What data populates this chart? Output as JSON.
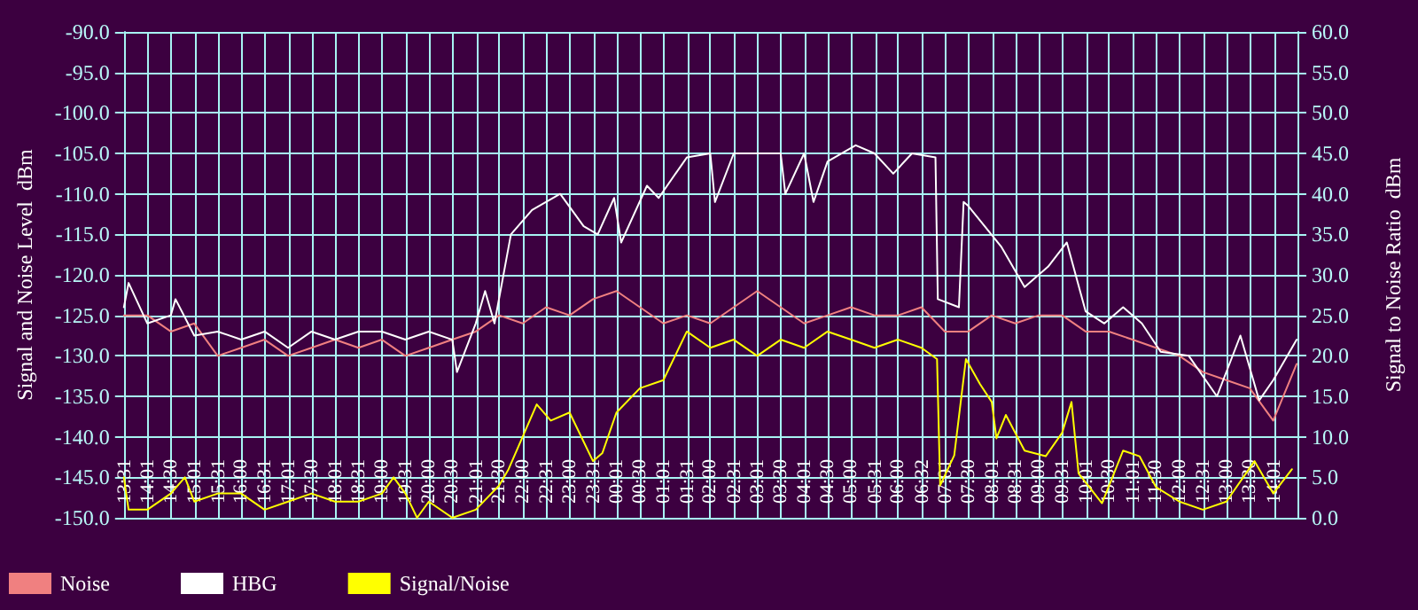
{
  "chart_data": {
    "type": "line",
    "ylabel": "Signal and Noise Level  dBm",
    "y2label": "Signal to Noise Ratio  dBm",
    "xlim": [
      "--01-01T13:30",
      "--01-02T14:31"
    ],
    "xticks": [
      {
        "value": "--01-01T13:31",
        "label": "13:31"
      },
      {
        "value": "--01-01T14:01",
        "label": "14:01"
      },
      {
        "value": "--01-01T14:30",
        "label": "14:30"
      },
      {
        "value": "--01-01T15:01",
        "label": "15:01"
      },
      {
        "value": "--01-01T15:31",
        "label": "15:31"
      },
      {
        "value": "--01-01T16:00",
        "label": "16:00"
      },
      {
        "value": "--01-01T16:31",
        "label": "16:31"
      },
      {
        "value": "--01-01T17:01",
        "label": "17:01"
      },
      {
        "value": "--01-01T17:30",
        "label": "17:30"
      },
      {
        "value": "--01-01T18:01",
        "label": "18:01"
      },
      {
        "value": "--01-01T18:31",
        "label": "18:31"
      },
      {
        "value": "--01-01T19:00",
        "label": "19:00"
      },
      {
        "value": "--01-01T19:31",
        "label": "19:31"
      },
      {
        "value": "--01-01T20:00",
        "label": "20:00"
      },
      {
        "value": "--01-01T20:30",
        "label": "20:30"
      },
      {
        "value": "--01-01T21:01",
        "label": "21:01"
      },
      {
        "value": "--01-01T21:30",
        "label": "21:30"
      },
      {
        "value": "--01-01T22:00",
        "label": "22:00"
      },
      {
        "value": "--01-01T22:31",
        "label": "22:31"
      },
      {
        "value": "--01-01T23:00",
        "label": "23:00"
      },
      {
        "value": "--01-01T23:31",
        "label": "23:31"
      },
      {
        "value": "--01-02T00:01",
        "label": "00:01"
      },
      {
        "value": "--01-02T00:30",
        "label": "00:30"
      },
      {
        "value": "--01-02T01:01",
        "label": "01:01"
      },
      {
        "value": "--01-02T01:31",
        "label": "01:31"
      },
      {
        "value": "--01-02T02:00",
        "label": "02:00"
      },
      {
        "value": "--01-02T02:31",
        "label": "02:31"
      },
      {
        "value": "--01-02T03:01",
        "label": "03:01"
      },
      {
        "value": "--01-02T03:30",
        "label": "03:30"
      },
      {
        "value": "--01-02T04:01",
        "label": "04:01"
      },
      {
        "value": "--01-02T04:30",
        "label": "04:30"
      },
      {
        "value": "--01-02T05:00",
        "label": "05:00"
      },
      {
        "value": "--01-02T05:31",
        "label": "05:31"
      },
      {
        "value": "--01-02T06:00",
        "label": "06:00"
      },
      {
        "value": "--01-02T06:32",
        "label": "06:32"
      },
      {
        "value": "--01-02T07:01",
        "label": "07:01"
      },
      {
        "value": "--01-02T07:30",
        "label": "07:30"
      },
      {
        "value": "--01-02T08:01",
        "label": "08:01"
      },
      {
        "value": "--01-02T08:31",
        "label": "08:31"
      },
      {
        "value": "--01-02T09:00",
        "label": "09:00"
      },
      {
        "value": "--01-02T09:31",
        "label": "09:31"
      },
      {
        "value": "--01-02T10:01",
        "label": "10:01"
      },
      {
        "value": "--01-02T10:30",
        "label": "10:30"
      },
      {
        "value": "--01-02T11:01",
        "label": "11:01"
      },
      {
        "value": "--01-02T11:30",
        "label": "11:30"
      },
      {
        "value": "--01-02T12:00",
        "label": "12:00"
      },
      {
        "value": "--01-02T12:31",
        "label": "12:31"
      },
      {
        "value": "--01-02T13:00",
        "label": "13:00"
      },
      {
        "value": "--01-02T13:30",
        "label": "13:30"
      },
      {
        "value": "--01-02T14:01",
        "label": "14:01"
      }
    ],
    "ylim": [
      -150,
      -90
    ],
    "yticks": [
      {
        "value": -150,
        "label": "-150.0"
      },
      {
        "value": -145,
        "label": "-145.0"
      },
      {
        "value": -140,
        "label": "-140.0"
      },
      {
        "value": -135,
        "label": "-135.0"
      },
      {
        "value": -130,
        "label": "-130.0"
      },
      {
        "value": -125,
        "label": "-125.0"
      },
      {
        "value": -120,
        "label": "-120.0"
      },
      {
        "value": -115,
        "label": "-115.0"
      },
      {
        "value": -110,
        "label": "-110.0"
      },
      {
        "value": -105,
        "label": "-105.0"
      },
      {
        "value": -100,
        "label": "-100.0"
      },
      {
        "value": -95,
        "label": "-95.0"
      },
      {
        "value": -90,
        "label": "-90.0"
      }
    ],
    "y2lim": [
      0,
      60
    ],
    "y2ticks": [
      {
        "value": 0,
        "label": "0.0"
      },
      {
        "value": 5,
        "label": "5.0"
      },
      {
        "value": 10,
        "label": "10.0"
      },
      {
        "value": 15,
        "label": "15.0"
      },
      {
        "value": 20,
        "label": "20.0"
      },
      {
        "value": 25,
        "label": "25.0"
      },
      {
        "value": 30,
        "label": "30.0"
      },
      {
        "value": 35,
        "label": "35.0"
      },
      {
        "value": 40,
        "label": "40.0"
      },
      {
        "value": 45,
        "label": "45.0"
      },
      {
        "value": 50,
        "label": "50.0"
      },
      {
        "value": 55,
        "label": "55.0"
      },
      {
        "value": 60,
        "label": "60.0"
      }
    ],
    "grid": true,
    "legend": "bottom",
    "marker": "none",
    "line_style": "solid",
    "series": [
      {
        "name": "Noise",
        "color": "#f08080",
        "x": [
          "--01-01T13:30",
          "--01-01T14:00",
          "--01-01T14:30",
          "--01-01T15:00",
          "--01-01T15:30",
          "--01-01T16:00",
          "--01-01T16:30",
          "--01-01T17:00",
          "--01-01T17:30",
          "--01-01T18:00",
          "--01-01T18:30",
          "--01-01T19:00",
          "--01-01T19:30",
          "--01-01T20:00",
          "--01-01T20:30",
          "--01-01T21:00",
          "--01-01T21:30",
          "--01-01T22:00",
          "--01-01T22:30",
          "--01-01T23:00",
          "--01-01T23:30",
          "--01-02T00:00",
          "--01-02T00:30",
          "--01-02T01:00",
          "--01-02T01:30",
          "--01-02T02:00",
          "--01-02T02:30",
          "--01-02T03:00",
          "--01-02T03:30",
          "--01-02T04:00",
          "--01-02T04:30",
          "--01-02T05:00",
          "--01-02T05:30",
          "--01-02T06:00",
          "--01-02T06:30",
          "--01-02T07:00",
          "--01-02T07:30",
          "--01-02T08:00",
          "--01-02T08:30",
          "--01-02T09:00",
          "--01-02T09:30",
          "--01-02T10:00",
          "--01-02T10:30",
          "--01-02T11:00",
          "--01-02T11:30",
          "--01-02T12:00",
          "--01-02T12:30",
          "--01-02T13:00",
          "--01-02T13:30",
          "--01-02T14:00",
          "--01-02T14:30"
        ],
        "values": [
          -125,
          -125,
          -127,
          -126,
          -130,
          -129,
          -128,
          -130,
          -129,
          -128,
          -129,
          -128,
          -130,
          -129,
          -128,
          -127,
          -125,
          -126,
          -124,
          -125,
          -123,
          -122,
          -124,
          -126,
          -125,
          -126,
          -124,
          -122,
          -124,
          -126,
          -125,
          -124,
          -125,
          -125,
          -124,
          -127,
          -127,
          -125,
          -126,
          -125,
          -125,
          -127,
          -127,
          -128,
          -129,
          -130,
          -132,
          -133,
          -134,
          -138,
          -131
        ]
      },
      {
        "name": "HBG",
        "color": "#ffffff",
        "x": [
          "--01-01T13:30",
          "--01-01T13:36",
          "--01-01T14:00",
          "--01-01T14:30",
          "--01-01T14:36",
          "--01-01T15:00",
          "--01-01T15:30",
          "--01-01T16:00",
          "--01-01T16:30",
          "--01-01T17:00",
          "--01-01T17:30",
          "--01-01T18:00",
          "--01-01T18:30",
          "--01-01T19:00",
          "--01-01T19:30",
          "--01-01T20:00",
          "--01-01T20:30",
          "--01-01T20:36",
          "--01-01T21:00",
          "--01-01T21:12",
          "--01-01T21:24",
          "--01-01T21:45",
          "--01-01T22:12",
          "--01-01T22:48",
          "--01-01T23:18",
          "--01-01T23:36",
          "--01-01T23:57",
          "--01-02T00:06",
          "--01-02T00:39",
          "--01-02T00:54",
          "--01-02T01:30",
          "--01-02T02:00",
          "--01-02T02:06",
          "--01-02T02:30",
          "--01-02T03:00",
          "--01-02T03:30",
          "--01-02T03:36",
          "--01-02T04:00",
          "--01-02T04:12",
          "--01-02T04:30",
          "--01-02T05:06",
          "--01-02T05:30",
          "--01-02T05:54",
          "--01-02T06:18",
          "--01-02T06:48",
          "--01-02T06:51",
          "--01-02T07:18",
          "--01-02T07:24",
          "--01-02T07:30",
          "--01-02T08:12",
          "--01-02T08:42",
          "--01-02T09:12",
          "--01-02T09:36",
          "--01-02T10:00",
          "--01-02T10:24",
          "--01-02T10:48",
          "--01-02T11:12",
          "--01-02T11:36",
          "--01-02T12:12",
          "--01-02T12:48",
          "--01-02T13:18",
          "--01-02T13:42",
          "--01-02T14:00",
          "--01-02T14:30"
        ],
        "values": [
          -124,
          -121,
          -126,
          -125,
          -123,
          -127.5,
          -127,
          -128,
          -127,
          -129,
          -127,
          -128,
          -127,
          -127,
          -128,
          -127,
          -128,
          -132,
          -126,
          -122,
          -126,
          -115,
          -112,
          -110,
          -114,
          -115,
          -110.5,
          -116,
          -109,
          -110.5,
          -105.5,
          -105,
          -111,
          -105,
          -105,
          -105,
          -110,
          -105,
          -111,
          -106,
          -104,
          -105,
          -107.5,
          -105,
          -105.5,
          -123,
          -124,
          -111,
          -111.5,
          -116.5,
          -121.5,
          -119,
          -116,
          -124.5,
          -126,
          -124,
          -126,
          -129.5,
          -130,
          -135,
          -127.5,
          -135.5,
          -133,
          -128
        ]
      },
      {
        "name": "Signal/Noise",
        "color": "#ffff00",
        "axis": "y2",
        "x": [
          "--01-01T13:30",
          "--01-01T13:36",
          "--01-01T14:00",
          "--01-01T14:30",
          "--01-01T14:48",
          "--01-01T15:00",
          "--01-01T15:30",
          "--01-01T16:00",
          "--01-01T16:30",
          "--01-01T17:00",
          "--01-01T17:30",
          "--01-01T18:00",
          "--01-01T18:30",
          "--01-01T19:00",
          "--01-01T19:15",
          "--01-01T19:30",
          "--01-01T19:45",
          "--01-01T20:00",
          "--01-01T20:30",
          "--01-01T21:00",
          "--01-01T21:30",
          "--01-01T21:42",
          "--01-01T22:00",
          "--01-01T22:18",
          "--01-01T22:36",
          "--01-01T23:00",
          "--01-01T23:30",
          "--01-01T23:42",
          "--01-02T00:00",
          "--01-02T00:30",
          "--01-02T01:00",
          "--01-02T01:30",
          "--01-02T02:00",
          "--01-02T02:30",
          "--01-02T03:00",
          "--01-02T03:30",
          "--01-02T04:00",
          "--01-02T04:30",
          "--01-02T05:00",
          "--01-02T05:30",
          "--01-02T06:00",
          "--01-02T06:30",
          "--01-02T06:50",
          "--01-02T06:54",
          "--01-02T07:12",
          "--01-02T07:27",
          "--01-02T07:45",
          "--01-02T08:00",
          "--01-02T08:06",
          "--01-02T08:18",
          "--01-02T08:42",
          "--01-02T09:09",
          "--01-02T09:30",
          "--01-02T09:42",
          "--01-02T09:51",
          "--01-02T10:21",
          "--01-02T10:48",
          "--01-02T11:09",
          "--01-02T11:30",
          "--01-02T12:00",
          "--01-02T12:30",
          "--01-02T13:00",
          "--01-02T13:36",
          "--01-02T14:00",
          "--01-02T14:24"
        ],
        "values": [
          5,
          1,
          1,
          3,
          5,
          2,
          3,
          3,
          1,
          2,
          3,
          2,
          2,
          3,
          5,
          3,
          0,
          2,
          0,
          1,
          4,
          6,
          10,
          14,
          12,
          13,
          7,
          8,
          13,
          16,
          17,
          23,
          21,
          22,
          20,
          22,
          21,
          23,
          22,
          21,
          22,
          21,
          19.6,
          4,
          7.7,
          19.6,
          16.5,
          14.3,
          9.8,
          12.7,
          8.3,
          7.6,
          10.5,
          14.3,
          5.5,
          1.8,
          8.3,
          7.6,
          3.8,
          2,
          1,
          2,
          7,
          3,
          6
        ]
      }
    ]
  }
}
